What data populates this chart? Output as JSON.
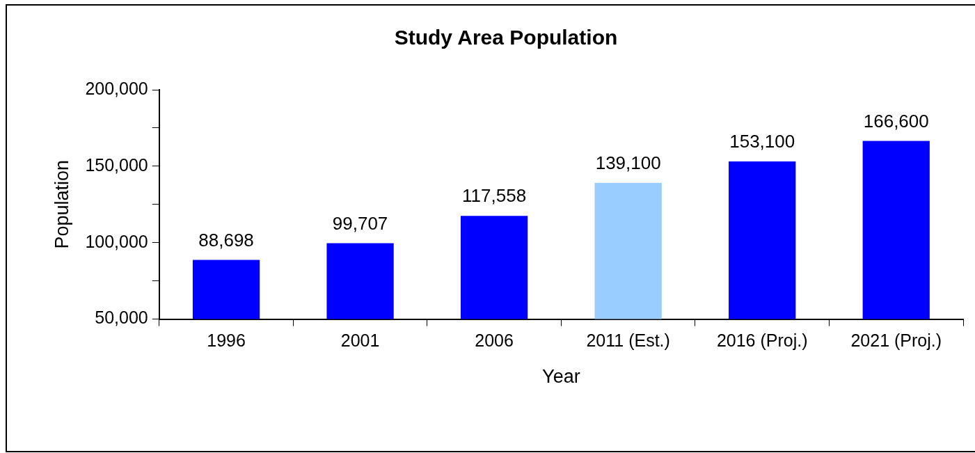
{
  "chart_data": {
    "type": "bar",
    "title": "Study Area Population",
    "xlabel": "Year",
    "ylabel": "Population",
    "categories": [
      "1996",
      "2001",
      "2006",
      "2011 (Est.)",
      "2016 (Proj.)",
      "2021 (Proj.)"
    ],
    "values": [
      88698,
      99707,
      117558,
      139100,
      153100,
      166600
    ],
    "value_labels": [
      "88,698",
      "99,707",
      "117,558",
      "139,100",
      "153,100",
      "166,600"
    ],
    "colors": [
      "#0000ff",
      "#0000ff",
      "#0000ff",
      "#99ccff",
      "#0000ff",
      "#0000ff"
    ],
    "ylim": [
      50000,
      200000
    ],
    "yticks": [
      {
        "value": 50000,
        "label": "50,000"
      },
      {
        "value": 75000,
        "label": null
      },
      {
        "value": 100000,
        "label": "100,000"
      },
      {
        "value": 125000,
        "label": null
      },
      {
        "value": 150000,
        "label": "150,000"
      },
      {
        "value": 175000,
        "label": null
      },
      {
        "value": 200000,
        "label": "200,000"
      }
    ],
    "grid": false,
    "legend": false
  }
}
